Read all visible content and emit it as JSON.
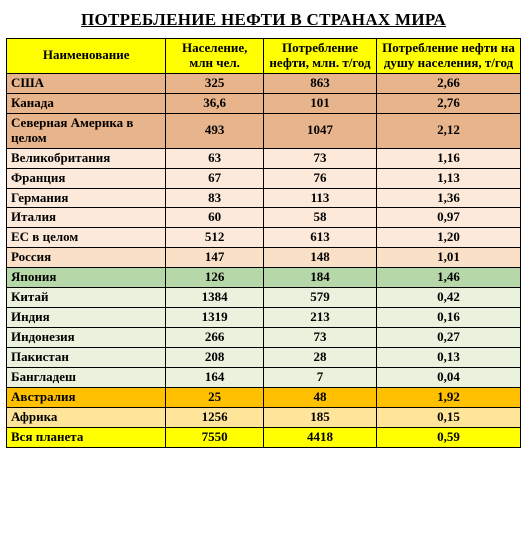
{
  "title": "ПОТРЕБЛЕНИЕ НЕФТИ В СТРАНАХ МИРА",
  "colors": {
    "header_bg": "#ffff00",
    "group_na": "#e8b48c",
    "group_eu": "#fde9d9",
    "group_ru": "#fbe0c8",
    "group_jp": "#b6d7a8",
    "group_asia": "#eaf1dd",
    "group_au": "#ffc000",
    "group_af": "#ffe599",
    "group_world": "#ffff00",
    "text": "#000000"
  },
  "columns": [
    "Наименование",
    "Население, млн чел.",
    "Потребление нефти, млн. т/год",
    "Потребление нефти на душу населения, т/год"
  ],
  "rows": [
    {
      "name": "США",
      "pop": "325",
      "cons": "863",
      "percap": "2,66",
      "group": "na"
    },
    {
      "name": "Канада",
      "pop": "36,6",
      "cons": "101",
      "percap": "2,76",
      "group": "na"
    },
    {
      "name": "Северная Америка в целом",
      "pop": "493",
      "cons": "1047",
      "percap": "2,12",
      "group": "na"
    },
    {
      "name": "Великобритания",
      "pop": "63",
      "cons": "73",
      "percap": "1,16",
      "group": "eu"
    },
    {
      "name": "Франция",
      "pop": "67",
      "cons": "76",
      "percap": "1,13",
      "group": "eu"
    },
    {
      "name": "Германия",
      "pop": "83",
      "cons": "113",
      "percap": "1,36",
      "group": "eu"
    },
    {
      "name": "Италия",
      "pop": "60",
      "cons": "58",
      "percap": "0,97",
      "group": "eu"
    },
    {
      "name": "ЕС в целом",
      "pop": "512",
      "cons": "613",
      "percap": "1,20",
      "group": "eu"
    },
    {
      "name": "Россия",
      "pop": "147",
      "cons": "148",
      "percap": "1,01",
      "group": "ru"
    },
    {
      "name": "Япония",
      "pop": "126",
      "cons": "184",
      "percap": "1,46",
      "group": "jp"
    },
    {
      "name": "Китай",
      "pop": "1384",
      "cons": "579",
      "percap": "0,42",
      "group": "asia"
    },
    {
      "name": "Индия",
      "pop": "1319",
      "cons": "213",
      "percap": "0,16",
      "group": "asia"
    },
    {
      "name": "Индонезия",
      "pop": "266",
      "cons": "73",
      "percap": "0,27",
      "group": "asia"
    },
    {
      "name": "Пакистан",
      "pop": "208",
      "cons": "28",
      "percap": "0,13",
      "group": "asia"
    },
    {
      "name": "Бангладеш",
      "pop": "164",
      "cons": "7",
      "percap": "0,04",
      "group": "asia"
    },
    {
      "name": "Австралия",
      "pop": "25",
      "cons": "48",
      "percap": "1,92",
      "group": "au"
    },
    {
      "name": "Африка",
      "pop": "1256",
      "cons": "185",
      "percap": "0,15",
      "group": "af"
    },
    {
      "name": "Вся планета",
      "pop": "7550",
      "cons": "4418",
      "percap": "0,59",
      "group": "world"
    }
  ],
  "typography": {
    "title_fontsize": 17,
    "cell_fontsize": 13,
    "font_family": "Times New Roman"
  }
}
